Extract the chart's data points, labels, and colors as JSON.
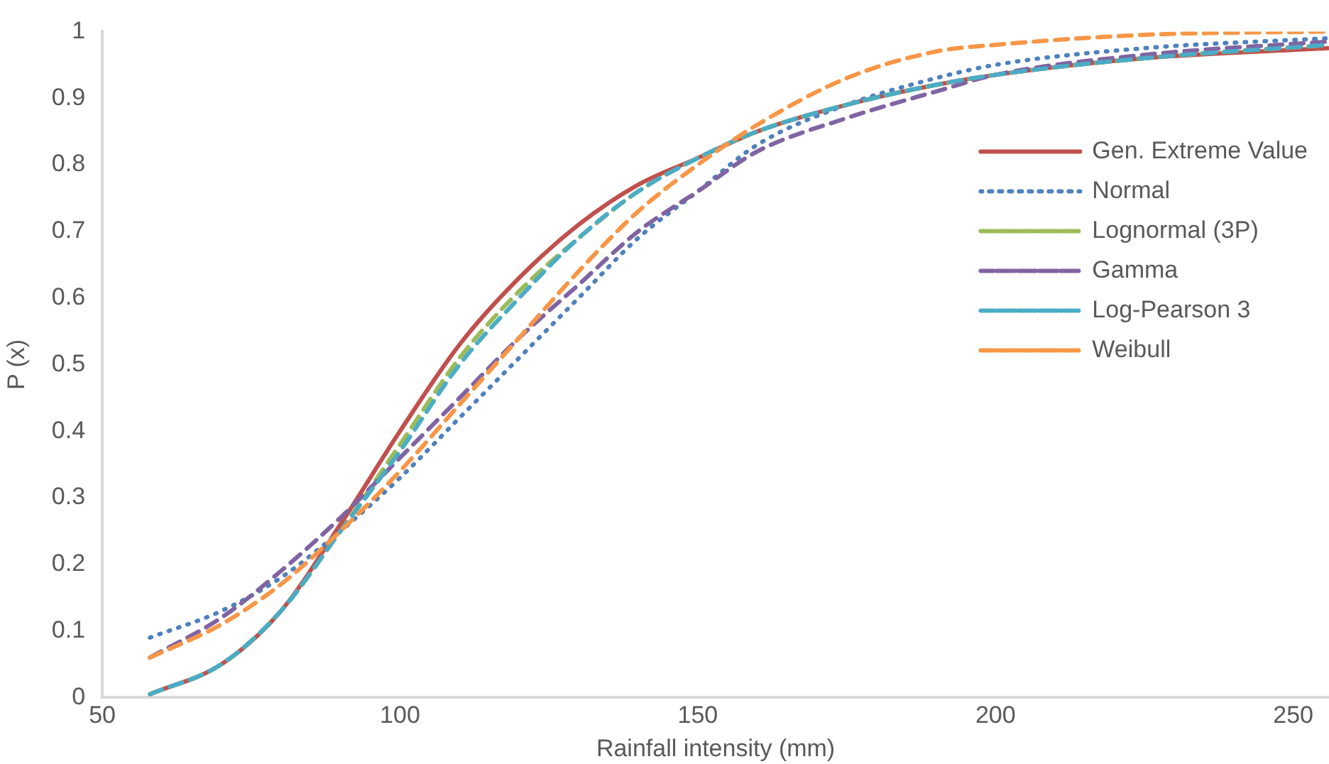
{
  "chart_data": {
    "type": "line",
    "xlabel": "Rainfall intensity (mm)",
    "ylabel": "P (x)",
    "x": [
      58,
      70,
      80,
      90,
      100,
      110,
      120,
      130,
      140,
      150,
      160,
      175,
      190,
      200,
      225,
      256
    ],
    "xlim": [
      50,
      256
    ],
    "xticks": [
      50,
      100,
      150,
      200,
      250
    ],
    "ylim": [
      0,
      1
    ],
    "yticks": [
      0,
      0.1,
      0.2,
      0.3,
      0.4,
      0.5,
      0.6,
      0.7,
      0.8,
      0.9,
      1
    ],
    "grid": false,
    "legend": "right",
    "marker": "none",
    "series": [
      {
        "name": "Gen. Extreme Value",
        "color": "#c0504d",
        "line_style": "solid",
        "values": [
          0.005,
          0.05,
          0.13,
          0.26,
          0.4,
          0.53,
          0.63,
          0.71,
          0.77,
          0.81,
          0.85,
          0.89,
          0.92,
          0.935,
          0.96,
          0.975
        ]
      },
      {
        "name": "Normal",
        "color": "#4f81bd",
        "line_style": "dotted",
        "values": [
          0.09,
          0.13,
          0.18,
          0.25,
          0.33,
          0.42,
          0.51,
          0.6,
          0.69,
          0.76,
          0.83,
          0.89,
          0.93,
          0.95,
          0.975,
          0.99
        ]
      },
      {
        "name": "Lognormal (3P)",
        "color": "#9bbb59",
        "line_style": "dashed",
        "values": [
          0.005,
          0.05,
          0.13,
          0.25,
          0.38,
          0.51,
          0.61,
          0.69,
          0.76,
          0.81,
          0.85,
          0.89,
          0.92,
          0.935,
          0.96,
          0.98
        ]
      },
      {
        "name": "Gamma",
        "color": "#8064a2",
        "line_style": "dashed",
        "values": [
          0.06,
          0.12,
          0.19,
          0.27,
          0.36,
          0.45,
          0.54,
          0.62,
          0.7,
          0.76,
          0.82,
          0.87,
          0.91,
          0.935,
          0.965,
          0.985
        ]
      },
      {
        "name": "Log-Pearson 3",
        "color": "#4bacc6",
        "line_style": "dashed",
        "values": [
          0.005,
          0.05,
          0.13,
          0.25,
          0.37,
          0.5,
          0.6,
          0.69,
          0.76,
          0.81,
          0.85,
          0.89,
          0.92,
          0.935,
          0.96,
          0.98
        ]
      },
      {
        "name": "Weibull",
        "color": "#f79646",
        "line_style": "dashed",
        "values": [
          0.06,
          0.11,
          0.17,
          0.25,
          0.34,
          0.44,
          0.54,
          0.64,
          0.73,
          0.8,
          0.86,
          0.93,
          0.97,
          0.98,
          0.995,
          1
        ]
      }
    ]
  }
}
